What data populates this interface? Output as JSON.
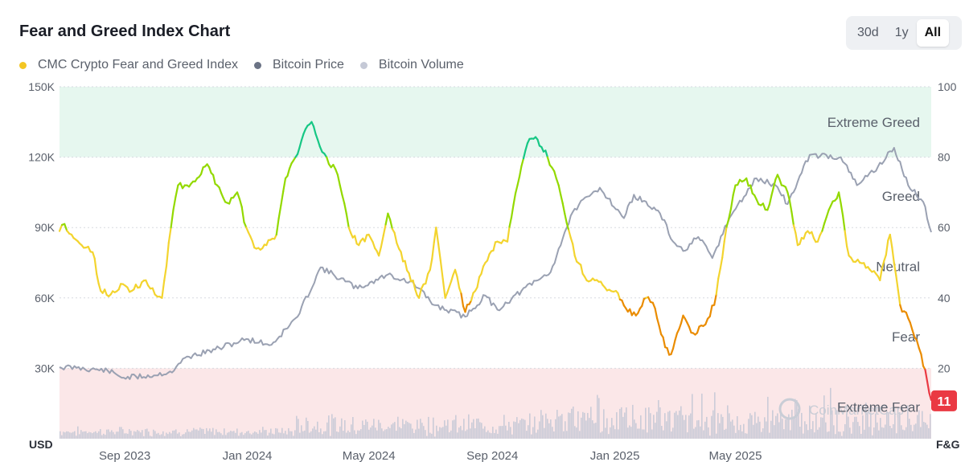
{
  "header": {
    "title": "Fear and Greed Index Chart",
    "ranges": [
      "30d",
      "1y",
      "All"
    ],
    "active_range": "All"
  },
  "legend": [
    {
      "label": "CMC Crypto Fear and Greed Index",
      "color": "#f3c623"
    },
    {
      "label": "Bitcoin Price",
      "color": "#6b7385"
    },
    {
      "label": "Bitcoin Volume",
      "color": "#c5c9d6"
    }
  ],
  "chart_data": {
    "type": "line",
    "left_axis": {
      "unit_label": "USD",
      "ticks": [
        "150K",
        "120K",
        "90K",
        "60K",
        "30K"
      ],
      "range": [
        0,
        150000
      ]
    },
    "right_axis": {
      "unit_label": "F&G",
      "ticks": [
        "100",
        "80",
        "60",
        "40",
        "20"
      ],
      "range": [
        0,
        100
      ]
    },
    "x_ticks": [
      "Sep 2023",
      "Jan 2024",
      "May 2024",
      "Sep 2024",
      "Jan 2025",
      "May 2025"
    ],
    "x_tick_dates": [
      "2023-09-01",
      "2024-01-01",
      "2024-05-01",
      "2024-09-01",
      "2025-01-01",
      "2025-05-01"
    ],
    "zones": [
      {
        "label": "Extreme Greed",
        "min": 80,
        "max": 100,
        "color": "#e6f7ef"
      },
      {
        "label": "Greed",
        "min": 60,
        "max": 80,
        "color": "#ffffff"
      },
      {
        "label": "Neutral",
        "min": 40,
        "max": 60,
        "color": "#ffffff"
      },
      {
        "label": "Fear",
        "min": 20,
        "max": 40,
        "color": "#ffffff"
      },
      {
        "label": "Extreme Fear",
        "min": 0,
        "max": 20,
        "color": "#fbe7e8"
      }
    ],
    "level_colors": {
      "extreme_greed": "#16c784",
      "greed": "#93d900",
      "neutral": "#f3d42f",
      "fear": "#ea8c00",
      "extreme_fear": "#ea3943"
    },
    "series": [
      {
        "name": "CMC Crypto Fear and Greed Index",
        "axis": "right",
        "x": [
          "2023-06-28",
          "2023-07-03",
          "2023-07-10",
          "2023-07-20",
          "2023-07-31",
          "2023-08-08",
          "2023-08-18",
          "2023-08-28",
          "2023-09-08",
          "2023-09-22",
          "2023-10-01",
          "2023-10-08",
          "2023-10-17",
          "2023-10-24",
          "2023-11-02",
          "2023-11-12",
          "2023-11-22",
          "2023-12-02",
          "2023-12-12",
          "2023-12-22",
          "2023-12-31",
          "2024-01-10",
          "2024-01-20",
          "2024-01-30",
          "2024-02-08",
          "2024-02-18",
          "2024-02-28",
          "2024-03-05",
          "2024-03-11",
          "2024-03-20",
          "2024-03-31",
          "2024-04-11",
          "2024-04-21",
          "2024-05-01",
          "2024-05-11",
          "2024-05-20",
          "2024-05-31",
          "2024-06-10",
          "2024-06-20",
          "2024-07-01",
          "2024-07-07",
          "2024-07-16",
          "2024-07-26",
          "2024-08-05",
          "2024-08-15",
          "2024-08-25",
          "2024-09-06",
          "2024-09-16",
          "2024-09-26",
          "2024-10-06",
          "2024-10-16",
          "2024-10-26",
          "2024-11-06",
          "2024-11-12",
          "2024-11-22",
          "2024-12-02",
          "2024-12-12",
          "2024-12-22",
          "2025-01-02",
          "2025-01-12",
          "2025-01-22",
          "2025-02-01",
          "2025-02-10",
          "2025-02-20",
          "2025-02-26",
          "2025-03-02",
          "2025-03-10",
          "2025-03-20",
          "2025-03-30",
          "2025-04-10",
          "2025-04-20",
          "2025-05-01",
          "2025-05-12",
          "2025-05-22",
          "2025-06-02",
          "2025-06-12",
          "2025-06-22",
          "2025-07-02",
          "2025-07-12",
          "2025-07-22",
          "2025-08-02",
          "2025-08-12",
          "2025-08-22",
          "2025-09-02",
          "2025-09-12",
          "2025-09-22",
          "2025-10-02",
          "2025-10-12",
          "2025-10-22",
          "2025-11-02",
          "2025-11-12"
        ],
        "values": [
          59,
          61,
          58,
          55,
          53,
          42,
          41,
          44,
          42,
          45,
          41,
          40,
          60,
          72,
          72,
          74,
          78,
          72,
          67,
          70,
          60,
          54,
          55,
          58,
          74,
          80,
          88,
          90,
          85,
          80,
          75,
          60,
          55,
          58,
          52,
          64,
          54,
          47,
          40,
          48,
          60,
          40,
          48,
          36,
          42,
          50,
          56,
          56,
          72,
          84,
          85,
          80,
          72,
          64,
          52,
          46,
          45,
          43,
          42,
          37,
          35,
          40,
          37,
          26,
          24,
          28,
          35,
          30,
          32,
          38,
          56,
          72,
          74,
          68,
          65,
          75,
          70,
          55,
          59,
          56,
          65,
          70,
          52,
          50,
          48,
          45,
          58,
          38,
          33,
          24,
          11
        ]
      },
      {
        "name": "Bitcoin Price",
        "axis": "left",
        "x": [
          "2023-06-28",
          "2023-07-15",
          "2023-08-15",
          "2023-08-31",
          "2023-09-30",
          "2023-10-20",
          "2023-10-31",
          "2023-11-30",
          "2023-12-31",
          "2024-01-25",
          "2024-02-20",
          "2024-03-14",
          "2024-04-20",
          "2024-05-20",
          "2024-06-15",
          "2024-07-05",
          "2024-08-05",
          "2024-08-25",
          "2024-09-06",
          "2024-09-30",
          "2024-10-29",
          "2024-11-12",
          "2024-11-22",
          "2024-12-17",
          "2025-01-10",
          "2025-01-20",
          "2025-02-15",
          "2025-02-28",
          "2025-03-10",
          "2025-03-25",
          "2025-04-08",
          "2025-04-25",
          "2025-05-22",
          "2025-06-10",
          "2025-06-22",
          "2025-07-14",
          "2025-08-14",
          "2025-08-30",
          "2025-09-20",
          "2025-10-06",
          "2025-10-20",
          "2025-11-04",
          "2025-11-12"
        ],
        "values": [
          30500,
          30200,
          29000,
          26000,
          27000,
          29000,
          34500,
          38000,
          42500,
          40000,
          52000,
          73000,
          64000,
          70000,
          66000,
          57000,
          52000,
          61000,
          55000,
          63000,
          71000,
          88000,
          98000,
          107000,
          94000,
          104000,
          96000,
          84000,
          80000,
          86000,
          77000,
          94000,
          111000,
          108000,
          100000,
          121000,
          120000,
          108000,
          116000,
          124000,
          108000,
          101000,
          88000
        ]
      }
    ],
    "volume_series": {
      "name": "Bitcoin Volume",
      "color": "#c5c9d6"
    },
    "badge": {
      "value": "11",
      "color": "#ea3943"
    }
  },
  "watermark": "CoinMarketCap"
}
